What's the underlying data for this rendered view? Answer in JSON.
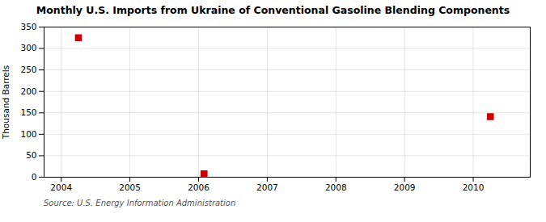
{
  "chart_data": {
    "type": "scatter",
    "title": "Monthly U.S. Imports from Ukraine of Conventional Gasoline Blending Components",
    "ylabel": "Thousand Barrels",
    "caption": "Source: U.S. Energy Information Administration",
    "x": [
      2004.25,
      2006.08,
      2010.25
    ],
    "values": [
      325,
      8,
      141
    ],
    "color": "#cc0000",
    "marker": "square",
    "xlim": [
      2003.75,
      2010.83
    ],
    "xticks": [
      2004,
      2005,
      2006,
      2007,
      2008,
      2009,
      2010
    ],
    "ylim": [
      0,
      350
    ],
    "yticks": [
      0,
      50,
      100,
      150,
      200,
      250,
      300,
      350
    ],
    "grid": true
  }
}
